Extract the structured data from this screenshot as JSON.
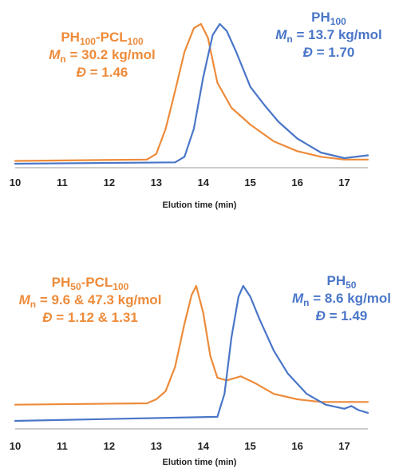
{
  "colors": {
    "orange": "#ED8B3A",
    "blue": "#4A76C8",
    "axis": "#999999"
  },
  "chart_data": [
    {
      "type": "line",
      "xlabel": "Elution time (min)",
      "ylabel": "",
      "xlim": [
        10,
        17.5
      ],
      "x_ticks": [
        "10",
        "11",
        "12",
        "13",
        "14",
        "15",
        "16",
        "17"
      ],
      "ylim": [
        0,
        1
      ],
      "grid": false,
      "annotations": [
        {
          "series": "PH100-PCL100",
          "color": "#ED8B3A",
          "name_base": "PH",
          "name_sub1": "100",
          "name_mid": "-PCL",
          "name_sub2": "100",
          "mn_label": "M",
          "mn_sub": "n",
          "mn_value": " = 30.2 kg/mol",
          "d_label": "Đ",
          "d_value": " = 1.46"
        },
        {
          "series": "PH100",
          "color": "#4A76C8",
          "name_base": "PH",
          "name_sub1": "100",
          "name_mid": "",
          "name_sub2": "",
          "mn_label": "M",
          "mn_sub": "n",
          "mn_value": " = 13.7 kg/mol",
          "d_label": "Đ",
          "d_value": " = 1.70"
        }
      ],
      "series": [
        {
          "name": "PH100-PCL100",
          "color": "#ED8B3A",
          "x": [
            10,
            12.8,
            13.0,
            13.2,
            13.4,
            13.6,
            13.8,
            13.95,
            14.1,
            14.3,
            14.6,
            15.0,
            15.5,
            16.0,
            16.5,
            17.0,
            17.5
          ],
          "y": [
            0.02,
            0.03,
            0.07,
            0.25,
            0.52,
            0.8,
            0.97,
            1.0,
            0.9,
            0.58,
            0.4,
            0.28,
            0.16,
            0.09,
            0.05,
            0.03,
            0.03
          ]
        },
        {
          "name": "PH100",
          "color": "#4A76C8",
          "x": [
            10,
            13.4,
            13.6,
            13.8,
            14.0,
            14.2,
            14.35,
            14.5,
            14.7,
            15.0,
            15.3,
            15.6,
            16.0,
            16.5,
            17.0,
            17.5
          ],
          "y": [
            0.0,
            0.01,
            0.05,
            0.25,
            0.62,
            0.92,
            1.0,
            0.95,
            0.8,
            0.55,
            0.42,
            0.3,
            0.18,
            0.08,
            0.04,
            0.06
          ]
        }
      ]
    },
    {
      "type": "line",
      "xlabel": "Elution time (min)",
      "ylabel": "",
      "xlim": [
        10,
        17.5
      ],
      "x_ticks": [
        "10",
        "11",
        "12",
        "13",
        "14",
        "15",
        "16",
        "17"
      ],
      "ylim": [
        0,
        1
      ],
      "grid": false,
      "annotations": [
        {
          "series": "PH50-PCL100",
          "color": "#ED8B3A",
          "name_base": "PH",
          "name_sub1": "50",
          "name_mid": "-PCL",
          "name_sub2": "100",
          "mn_label": "M",
          "mn_sub": "n",
          "mn_value": " = 9.6 & 47.3 kg/mol",
          "d_label": "Đ",
          "d_value": " = 1.12 & 1.31"
        },
        {
          "series": "PH50",
          "color": "#4A76C8",
          "name_base": "PH",
          "name_sub1": "50",
          "name_mid": "",
          "name_sub2": "",
          "mn_label": "M",
          "mn_sub": "n",
          "mn_value": " = 8.6 kg/mol",
          "d_label": "Đ",
          "d_value": " = 1.49"
        }
      ],
      "series": [
        {
          "name": "PH50-PCL100",
          "color": "#ED8B3A",
          "x": [
            10,
            12.8,
            13.0,
            13.2,
            13.4,
            13.6,
            13.75,
            13.85,
            14.0,
            14.15,
            14.3,
            14.5,
            14.8,
            15.1,
            15.5,
            16.0,
            16.5,
            17.0,
            17.5
          ],
          "y": [
            0.12,
            0.13,
            0.16,
            0.22,
            0.4,
            0.72,
            0.93,
            1.0,
            0.8,
            0.48,
            0.32,
            0.3,
            0.33,
            0.28,
            0.2,
            0.16,
            0.14,
            0.14,
            0.14
          ]
        },
        {
          "name": "PH50",
          "color": "#4A76C8",
          "x": [
            10,
            14.3,
            14.45,
            14.6,
            14.75,
            14.85,
            15.0,
            15.2,
            15.5,
            15.8,
            16.2,
            16.6,
            17.0,
            17.15,
            17.3,
            17.5
          ],
          "y": [
            0.0,
            0.03,
            0.2,
            0.62,
            0.92,
            1.0,
            0.92,
            0.75,
            0.52,
            0.35,
            0.2,
            0.12,
            0.09,
            0.11,
            0.08,
            0.06
          ]
        }
      ]
    }
  ]
}
